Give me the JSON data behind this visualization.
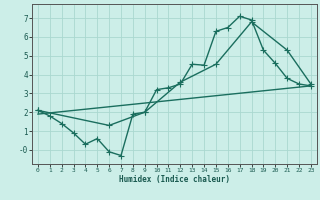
{
  "title": "",
  "xlabel": "Humidex (Indice chaleur)",
  "ylabel": "",
  "bg_color": "#cceee8",
  "grid_color": "#aad8d0",
  "line_color": "#1a6e5e",
  "xlim": [
    -0.5,
    23.5
  ],
  "ylim": [
    -0.75,
    7.75
  ],
  "xticks": [
    0,
    1,
    2,
    3,
    4,
    5,
    6,
    7,
    8,
    9,
    10,
    11,
    12,
    13,
    14,
    15,
    16,
    17,
    18,
    19,
    20,
    21,
    22,
    23
  ],
  "yticks": [
    0,
    1,
    2,
    3,
    4,
    5,
    6,
    7
  ],
  "ytick_labels": [
    "-0",
    "1",
    "2",
    "3",
    "4",
    "5",
    "6",
    "7"
  ],
  "line1_x": [
    0,
    1,
    2,
    3,
    4,
    5,
    6,
    7,
    8,
    9,
    10,
    11,
    12,
    13,
    14,
    15,
    16,
    17,
    18,
    19,
    20,
    21,
    22,
    23
  ],
  "line1_y": [
    2.1,
    1.8,
    1.4,
    0.9,
    0.3,
    0.6,
    -0.1,
    -0.3,
    1.9,
    2.0,
    3.2,
    3.3,
    3.5,
    4.55,
    4.5,
    6.3,
    6.5,
    7.1,
    6.9,
    5.3,
    4.6,
    3.8,
    3.5,
    3.4
  ],
  "line2_x": [
    0,
    23
  ],
  "line2_y": [
    1.9,
    3.4
  ],
  "line3_x": [
    0,
    6,
    9,
    12,
    15,
    18,
    21,
    23
  ],
  "line3_y": [
    2.1,
    1.3,
    2.0,
    3.6,
    4.55,
    6.8,
    5.3,
    3.5
  ],
  "marker": "+",
  "marker_size": 4,
  "linewidth": 1.0
}
